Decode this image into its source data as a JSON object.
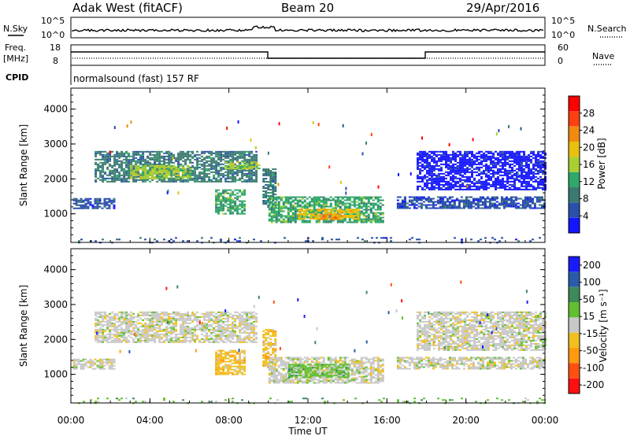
{
  "header": {
    "station": "Adak West (fitACF)",
    "beam": "Beam 20",
    "date": "29/Apr/2016"
  },
  "noise_panel": {
    "left_label": "N.Sky",
    "right_label": "N.Search",
    "left_ticks": [
      "10^5",
      "10^0"
    ],
    "right_ticks": [
      "10^5",
      "10^0"
    ]
  },
  "freq_panel": {
    "left_label_line1": "Freq.",
    "left_label_line2": "[MHz]",
    "left_ticks": [
      "18",
      "8"
    ],
    "right_label": "Nave",
    "right_ticks": [
      "60",
      "0"
    ],
    "cpid_label": "CPID",
    "cpid_text": "normalsound (fast) 157 RF"
  },
  "time_axis": {
    "title": "Time UT",
    "ticks": [
      "00:00",
      "04:00",
      "08:00",
      "12:00",
      "16:00",
      "20:00",
      "00:00"
    ]
  },
  "colors": {
    "power": [
      "#1515ff",
      "#2a50aa",
      "#3a7a70",
      "#2fa86a",
      "#a8d030",
      "#e8c010",
      "#f08a10",
      "#ff4010",
      "#ff0000"
    ],
    "velocity": [
      "#ff1010",
      "#ff5010",
      "#ff9a10",
      "#f0c020",
      "#c8c8c8",
      "#60c030",
      "#3a8a5a",
      "#2a5aaa",
      "#1a1aff"
    ]
  },
  "chart_data": [
    {
      "type": "heatmap",
      "name": "power",
      "ylabel": "Slant Range [km]",
      "xlabel": "",
      "xlim_hours": [
        0,
        24
      ],
      "ylim_km": [
        180,
        4600
      ],
      "yticks": [
        "1000",
        "2000",
        "3000",
        "4000"
      ],
      "colorbar": {
        "label": "Power [dB]",
        "range": [
          0,
          32
        ],
        "ticks": [
          "4",
          "8",
          "12",
          "16",
          "20",
          "24",
          "28"
        ]
      },
      "regions": [
        {
          "t0": 0.1,
          "t1": 2.2,
          "r0": 1150,
          "r1": 1450,
          "level": 1
        },
        {
          "t0": 1.2,
          "t1": 9.4,
          "r0": 1900,
          "r1": 2800,
          "level": 2
        },
        {
          "t0": 3.0,
          "t1": 6.0,
          "r0": 2000,
          "r1": 2400,
          "level": 4
        },
        {
          "t0": 7.8,
          "t1": 9.5,
          "r0": 2300,
          "r1": 2500,
          "level": 4
        },
        {
          "t0": 7.3,
          "t1": 8.8,
          "r0": 1000,
          "r1": 1700,
          "level": 3
        },
        {
          "t0": 9.7,
          "t1": 10.4,
          "r0": 1200,
          "r1": 2300,
          "level": 2
        },
        {
          "t0": 10.0,
          "t1": 15.8,
          "r0": 750,
          "r1": 1500,
          "level": 3
        },
        {
          "t0": 11.5,
          "t1": 14.5,
          "r0": 850,
          "r1": 1150,
          "level": 5
        },
        {
          "t0": 12.5,
          "t1": 13.8,
          "r0": 850,
          "r1": 1000,
          "level": 6
        },
        {
          "t0": 16.5,
          "t1": 24.0,
          "r0": 1150,
          "r1": 1500,
          "level": 1
        },
        {
          "t0": 17.5,
          "t1": 24.0,
          "r0": 1700,
          "r1": 2800,
          "level": 0
        },
        {
          "t0": 0.0,
          "t1": 24.0,
          "r0": 180,
          "r1": 330,
          "level": 1
        }
      ]
    },
    {
      "type": "heatmap",
      "name": "velocity",
      "ylabel": "Slant Range [km]",
      "xlabel": "Time UT",
      "xlim_hours": [
        0,
        24
      ],
      "ylim_km": [
        180,
        4600
      ],
      "yticks": [
        "1000",
        "2000",
        "3000",
        "4000"
      ],
      "colorbar": {
        "label": "Velocity [m s⁻¹]",
        "ticks": [
          "-200",
          "-100",
          "-50",
          "-15",
          "15",
          "50",
          "100",
          "200"
        ]
      },
      "regions": [
        {
          "t0": 0.1,
          "t1": 2.2,
          "r0": 1150,
          "r1": 1450,
          "level": 4
        },
        {
          "t0": 1.2,
          "t1": 9.4,
          "r0": 1900,
          "r1": 2800,
          "level": 4
        },
        {
          "t0": 7.3,
          "t1": 8.8,
          "r0": 1000,
          "r1": 1700,
          "level": 3
        },
        {
          "t0": 9.7,
          "t1": 10.4,
          "r0": 1200,
          "r1": 2300,
          "level": 3
        },
        {
          "t0": 10.0,
          "t1": 15.8,
          "r0": 750,
          "r1": 1500,
          "level": 4
        },
        {
          "t0": 11.0,
          "t1": 14.0,
          "r0": 900,
          "r1": 1300,
          "level": 5
        },
        {
          "t0": 16.5,
          "t1": 24.0,
          "r0": 1150,
          "r1": 1500,
          "level": 4
        },
        {
          "t0": 17.5,
          "t1": 24.0,
          "r0": 1700,
          "r1": 2800,
          "level": 4
        },
        {
          "t0": 0.0,
          "t1": 24.0,
          "r0": 180,
          "r1": 330,
          "level": 5
        }
      ]
    }
  ]
}
